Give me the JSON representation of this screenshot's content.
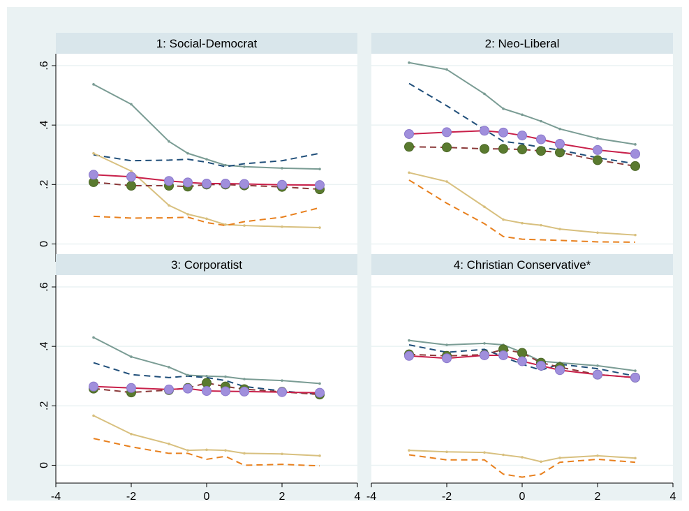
{
  "colors": {
    "outer_background": "#eaf2f3",
    "panel_background": "#ffffff",
    "strip_background": "#d9e6eb",
    "gridline": "#eaf2f3",
    "axis": "#000000"
  },
  "chart_data": {
    "type": "line",
    "layout": "2x2 facets",
    "xlim": [
      -4,
      4
    ],
    "ylim": [
      -0.06,
      0.64
    ],
    "x_ticks": [
      -4,
      -2,
      0,
      2,
      4
    ],
    "x_tick_labels": [
      "-4",
      "-2",
      "0",
      "2",
      "4"
    ],
    "y_ticks": [
      0,
      0.2,
      0.4,
      0.6
    ],
    "y_tick_labels": [
      "0",
      ".2",
      ".4",
      ".6"
    ],
    "grid": true,
    "legend": "none",
    "x": [
      -3,
      -2,
      -1,
      -0.5,
      0,
      0.5,
      1,
      2,
      3
    ],
    "series_styles": [
      {
        "id": "grey_solid",
        "color": "#7a9c94",
        "dash": "solid",
        "marker": "dot-small"
      },
      {
        "id": "navy_dashed",
        "color": "#1f4e79",
        "dash": "dashed",
        "marker": "none"
      },
      {
        "id": "tan_solid",
        "color": "#d8c07f",
        "dash": "solid",
        "marker": "dot-small"
      },
      {
        "id": "orange_dashed",
        "color": "#e8801e",
        "dash": "dashed",
        "marker": "none"
      },
      {
        "id": "maroon_dashed",
        "color": "#8b3a3a",
        "dash": "dashed",
        "marker": "green-circle"
      },
      {
        "id": "crimson_solid",
        "color": "#c8204a",
        "dash": "solid",
        "marker": "lavender-circle"
      }
    ],
    "panels": [
      {
        "title": "1: Social-Democrat",
        "show_y_axis": true,
        "show_x_axis": false,
        "series": [
          {
            "style": "grey_solid",
            "values": [
              0.537,
              0.47,
              0.345,
              0.305,
              0.285,
              0.265,
              0.26,
              0.255,
              0.252
            ]
          },
          {
            "style": "navy_dashed",
            "values": [
              0.3,
              0.28,
              0.282,
              0.285,
              0.275,
              0.26,
              0.27,
              0.28,
              0.305
            ]
          },
          {
            "style": "tan_solid",
            "values": [
              0.305,
              0.245,
              0.13,
              0.1,
              0.085,
              0.065,
              0.062,
              0.058,
              0.055
            ]
          },
          {
            "style": "orange_dashed",
            "values": [
              0.093,
              0.087,
              0.088,
              0.09,
              0.072,
              0.062,
              0.075,
              0.09,
              0.122
            ]
          },
          {
            "style": "maroon_dashed",
            "values": [
              0.208,
              0.196,
              0.196,
              0.193,
              0.2,
              0.2,
              0.197,
              0.192,
              0.184
            ]
          },
          {
            "style": "crimson_solid",
            "values": [
              0.233,
              0.226,
              0.212,
              0.207,
              0.203,
              0.203,
              0.202,
              0.199,
              0.198
            ]
          }
        ]
      },
      {
        "title": "2: Neo-Liberal",
        "show_y_axis": false,
        "show_x_axis": false,
        "series": [
          {
            "style": "grey_solid",
            "values": [
              0.61,
              0.587,
              0.505,
              0.455,
              0.435,
              0.413,
              0.387,
              0.355,
              0.335
            ]
          },
          {
            "style": "navy_dashed",
            "values": [
              0.54,
              0.465,
              0.385,
              0.345,
              0.337,
              0.325,
              0.316,
              0.29,
              0.27
            ]
          },
          {
            "style": "tan_solid",
            "values": [
              0.24,
              0.21,
              0.125,
              0.082,
              0.07,
              0.063,
              0.05,
              0.038,
              0.03
            ]
          },
          {
            "style": "orange_dashed",
            "values": [
              0.215,
              0.137,
              0.068,
              0.025,
              0.016,
              0.014,
              0.012,
              0.007,
              0.006
            ]
          },
          {
            "style": "maroon_dashed",
            "values": [
              0.327,
              0.325,
              0.32,
              0.32,
              0.318,
              0.313,
              0.308,
              0.282,
              0.262
            ]
          },
          {
            "style": "crimson_solid",
            "values": [
              0.37,
              0.376,
              0.381,
              0.375,
              0.365,
              0.352,
              0.337,
              0.316,
              0.303
            ]
          }
        ]
      },
      {
        "title": "3: Corporatist",
        "show_y_axis": true,
        "show_x_axis": true,
        "series": [
          {
            "style": "grey_solid",
            "values": [
              0.43,
              0.365,
              0.33,
              0.303,
              0.3,
              0.298,
              0.29,
              0.285,
              0.275
            ]
          },
          {
            "style": "navy_dashed",
            "values": [
              0.345,
              0.305,
              0.295,
              0.3,
              0.295,
              0.285,
              0.265,
              0.25,
              0.238
            ]
          },
          {
            "style": "tan_solid",
            "values": [
              0.167,
              0.105,
              0.072,
              0.05,
              0.052,
              0.05,
              0.04,
              0.038,
              0.032
            ]
          },
          {
            "style": "orange_dashed",
            "values": [
              0.09,
              0.062,
              0.04,
              0.04,
              0.02,
              0.03,
              0.0,
              0.003,
              -0.002
            ]
          },
          {
            "style": "maroon_dashed",
            "values": [
              0.258,
              0.245,
              0.253,
              0.26,
              0.277,
              0.265,
              0.256,
              0.247,
              0.238
            ]
          },
          {
            "style": "crimson_solid",
            "values": [
              0.265,
              0.26,
              0.255,
              0.258,
              0.25,
              0.249,
              0.248,
              0.246,
              0.244
            ]
          }
        ]
      },
      {
        "title": "4: Christian Conservative*",
        "show_y_axis": false,
        "show_x_axis": true,
        "series": [
          {
            "style": "grey_solid",
            "values": [
              0.42,
              0.405,
              0.41,
              0.405,
              0.38,
              0.35,
              0.345,
              0.335,
              0.318
            ]
          },
          {
            "style": "navy_dashed",
            "values": [
              0.405,
              0.38,
              0.39,
              0.365,
              0.34,
              0.32,
              0.34,
              0.325,
              0.3
            ]
          },
          {
            "style": "tan_solid",
            "values": [
              0.05,
              0.045,
              0.043,
              0.035,
              0.027,
              0.012,
              0.025,
              0.032,
              0.024
            ]
          },
          {
            "style": "orange_dashed",
            "values": [
              0.035,
              0.018,
              0.018,
              -0.03,
              -0.04,
              -0.03,
              0.01,
              0.02,
              0.01
            ]
          },
          {
            "style": "maroon_dashed",
            "values": [
              0.373,
              0.368,
              0.372,
              0.39,
              0.378,
              0.345,
              0.33,
              0.305,
              0.295
            ]
          },
          {
            "style": "crimson_solid",
            "values": [
              0.368,
              0.36,
              0.37,
              0.37,
              0.35,
              0.335,
              0.32,
              0.305,
              0.295
            ]
          }
        ]
      }
    ]
  }
}
